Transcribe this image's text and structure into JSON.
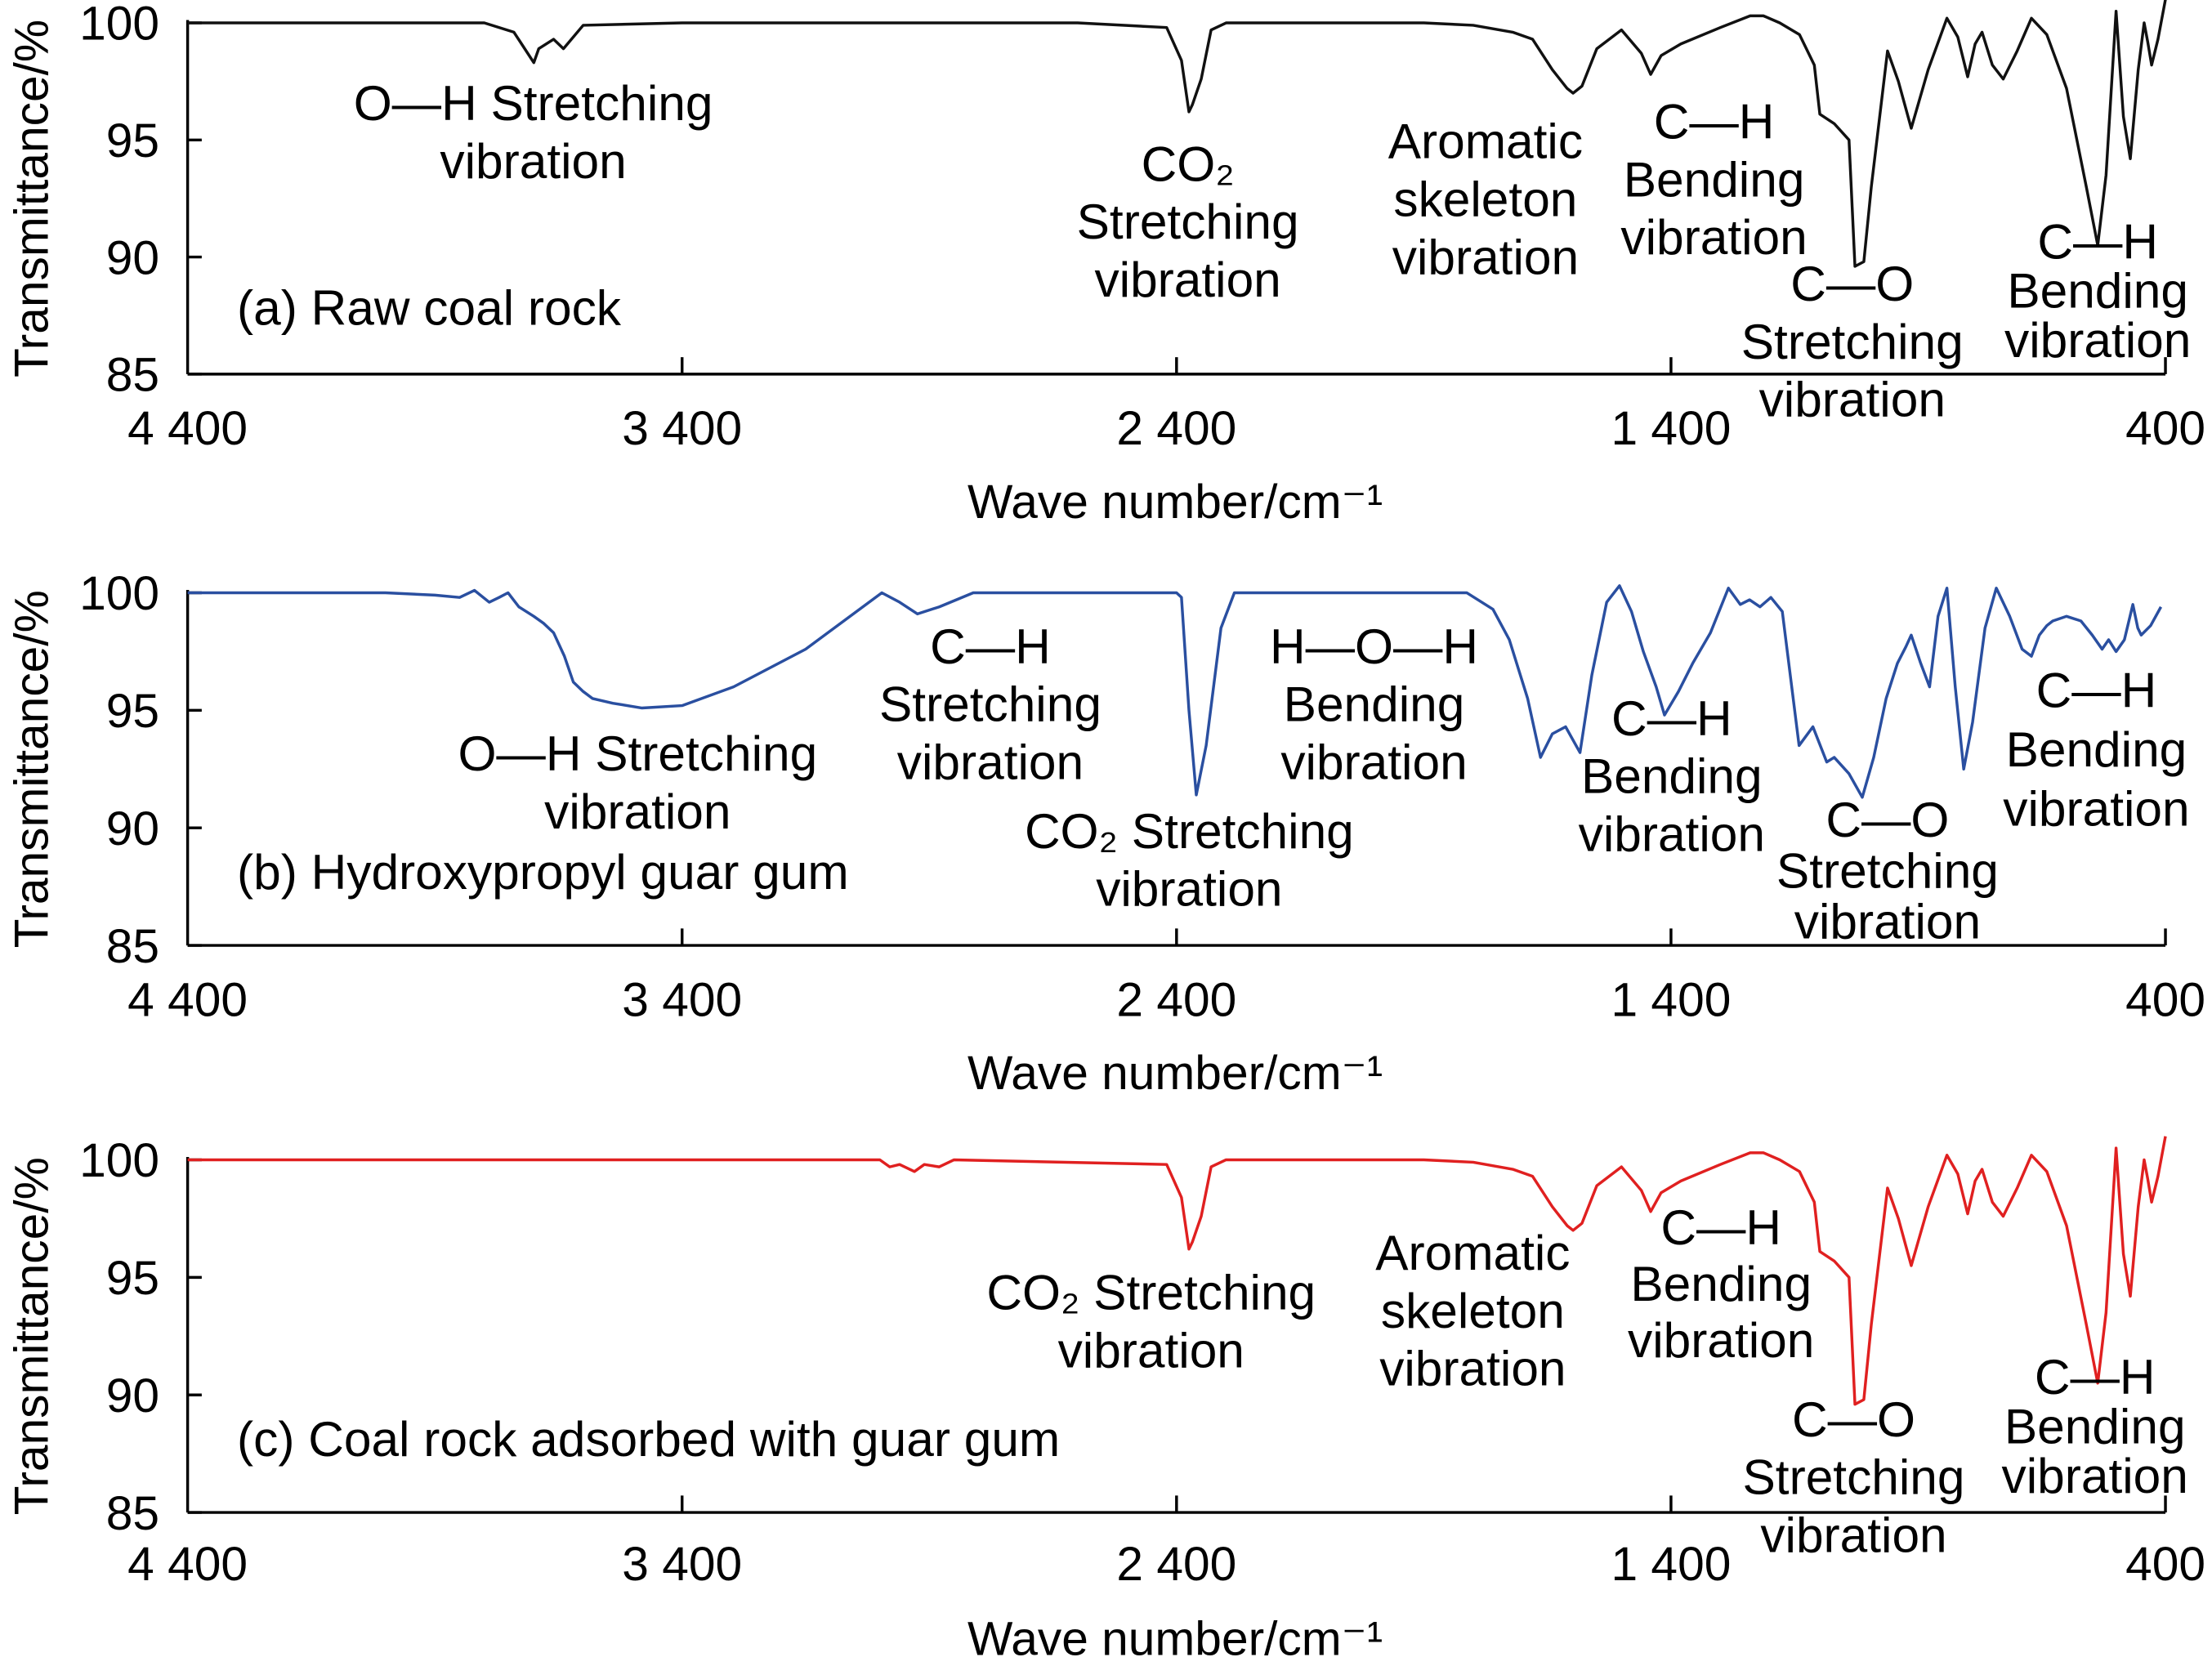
{
  "chart_data": [
    {
      "type": "line",
      "title": "(a) Raw coal rock",
      "xlabel": "Wave number/cm⁻¹",
      "ylabel": "Transmittance/%",
      "xlim": [
        4400,
        400
      ],
      "ylim": [
        85,
        100
      ],
      "xticks": [
        "4 400",
        "3 400",
        "2 400",
        "1 400",
        "400"
      ],
      "xtick_values": [
        4400,
        3400,
        2400,
        1400,
        400
      ],
      "yticks": [
        "100",
        "95",
        "90",
        "85"
      ],
      "ytick_values": [
        100,
        95,
        90,
        85
      ],
      "color": "#111111",
      "series": [
        {
          "name": "Raw coal rock",
          "x": [
            4400,
            3800,
            3740,
            3700,
            3690,
            3660,
            3640,
            3600,
            3400,
            2600,
            2420,
            2390,
            2375,
            2368,
            2350,
            2330,
            2300,
            2200,
            1900,
            1800,
            1720,
            1680,
            1640,
            1610,
            1598,
            1580,
            1550,
            1500,
            1460,
            1441,
            1420,
            1380,
            1300,
            1240,
            1213,
            1180,
            1140,
            1110,
            1099,
            1070,
            1040,
            1028,
            1010,
            995,
            962,
            940,
            914,
            880,
            842,
            820,
            800,
            785,
            771,
            750,
            728,
            700,
            671,
            640,
            600,
            560,
            537,
            520,
            500,
            485,
            471,
            455,
            443,
            436,
            428,
            415,
            400
          ],
          "y": [
            100,
            100,
            99.6,
            98.3,
            98.9,
            99.3,
            98.9,
            99.9,
            100,
            100,
            99.8,
            98.4,
            96.2,
            96.5,
            97.6,
            99.7,
            100,
            100,
            100,
            99.9,
            99.6,
            99.3,
            98,
            97.2,
            97,
            97.3,
            98.9,
            99.7,
            98.7,
            97.8,
            98.6,
            99.1,
            99.8,
            100.3,
            100.3,
            100,
            99.5,
            98.2,
            96.1,
            95.7,
            95,
            89.6,
            89.8,
            93,
            98.8,
            97.5,
            95.5,
            98,
            100.2,
            99.4,
            97.7,
            99.1,
            99.6,
            98.2,
            97.6,
            98.8,
            100.2,
            99.5,
            97.2,
            93,
            90.5,
            93.5,
            100.5,
            96,
            94.2,
            98,
            100,
            99.2,
            98.2,
            99.3,
            101
          ]
        }
      ],
      "annotations": [
        {
          "lines": [
            "O—H Stretching",
            "vibration"
          ]
        },
        {
          "lines": [
            "CO₂",
            "Stretching",
            "vibration"
          ]
        },
        {
          "lines": [
            "Aromatic",
            "skeleton",
            "vibration"
          ]
        },
        {
          "lines": [
            "C—H",
            "Bending",
            "vibration"
          ]
        },
        {
          "lines": [
            "C—O",
            "Stretching",
            "vibration"
          ]
        },
        {
          "lines": [
            "C—H",
            "Bending",
            "vibration"
          ]
        }
      ]
    },
    {
      "type": "line",
      "title": "(b) Hydroxypropyl guar gum",
      "xlabel": "Wave number/cm⁻¹",
      "ylabel": "Transmittance/%",
      "xlim": [
        4400,
        400
      ],
      "ylim": [
        85,
        100
      ],
      "xticks": [
        "4 400",
        "3 400",
        "2 400",
        "1 400",
        "400"
      ],
      "xtick_values": [
        4400,
        3400,
        2400,
        1400,
        400
      ],
      "yticks": [
        "100",
        "95",
        "90",
        "85"
      ],
      "ytick_values": [
        100,
        95,
        90,
        85
      ],
      "color": "#2a4fa0",
      "series": [
        {
          "name": "Hydroxypropyl guar gum",
          "x": [
            4400,
            4000,
            3900,
            3850,
            3820,
            3790,
            3770,
            3752,
            3730,
            3700,
            3680,
            3660,
            3638,
            3620,
            3600,
            3581,
            3540,
            3481,
            3400,
            3296,
            3150,
            2996,
            2960,
            2924,
            2880,
            2811,
            2600,
            2400,
            2390,
            2375,
            2360,
            2340,
            2310,
            2283,
            2100,
            1813,
            1760,
            1727,
            1690,
            1664,
            1640,
            1613,
            1584,
            1560,
            1530,
            1504,
            1480,
            1456,
            1430,
            1413,
            1385,
            1356,
            1320,
            1284,
            1260,
            1241,
            1220,
            1198,
            1175,
            1141,
            1113,
            1085,
            1070,
            1040,
            1013,
            990,
            965,
            942,
            925,
            914,
            895,
            877,
            860,
            842,
            825,
            808,
            790,
            765,
            742,
            715,
            690,
            671,
            655,
            640,
            628,
            600,
            571,
            548,
            528,
            515,
            500,
            483,
            466,
            456,
            449,
            430,
            409
          ],
          "y": [
            100,
            100,
            99.9,
            99.8,
            100.1,
            99.6,
            99.8,
            100,
            99.4,
            99,
            98.7,
            98.3,
            97.3,
            96.2,
            95.8,
            95.5,
            95.3,
            95.1,
            95.2,
            96,
            97.6,
            100,
            99.6,
            99.1,
            99.4,
            100,
            100,
            100,
            99.8,
            95,
            91.4,
            93.5,
            98.5,
            100,
            100,
            100,
            99.3,
            98,
            95.5,
            93,
            94,
            94.3,
            93.2,
            96.5,
            99.6,
            100.3,
            99.2,
            97.5,
            96,
            94.8,
            95.8,
            97,
            98.3,
            100.2,
            99.5,
            99.7,
            99.4,
            99.8,
            99.2,
            93.5,
            94.3,
            92.8,
            93,
            92.3,
            91.3,
            93,
            95.5,
            97,
            97.7,
            98.2,
            97,
            96,
            99,
            100.2,
            96,
            92.5,
            94.5,
            98.5,
            100.2,
            99,
            97.6,
            97.3,
            98.2,
            98.6,
            98.8,
            99,
            98.8,
            98.2,
            97.6,
            98,
            97.5,
            98,
            99.5,
            98.5,
            98.2,
            98.6,
            99.4
          ]
        }
      ],
      "annotations": [
        {
          "lines": [
            "O—H Stretching",
            "vibration"
          ]
        },
        {
          "lines": [
            "C—H",
            "Stretching",
            "vibration"
          ]
        },
        {
          "lines": [
            "H—O—H",
            "Bending",
            "vibration"
          ]
        },
        {
          "lines": [
            "CO₂ Stretching",
            "vibration"
          ]
        },
        {
          "lines": [
            "C—H",
            "Bending",
            "vibration"
          ]
        },
        {
          "lines": [
            "C—O",
            "Stretching",
            "vibration"
          ]
        },
        {
          "lines": [
            "C—H",
            "Bending",
            "vibration"
          ]
        }
      ]
    },
    {
      "type": "line",
      "title": "(c) Coal rock adsorbed with guar gum",
      "xlabel": "Wave number/cm⁻¹",
      "ylabel": "Transmittance/%",
      "xlim": [
        4400,
        400
      ],
      "ylim": [
        85,
        100
      ],
      "xticks": [
        "4 400",
        "3 400",
        "2 400",
        "1 400",
        "400"
      ],
      "xtick_values": [
        4400,
        3400,
        2400,
        1400,
        400
      ],
      "yticks": [
        "100",
        "95",
        "90",
        "85"
      ],
      "ytick_values": [
        100,
        95,
        90,
        85
      ],
      "color": "#e02020",
      "series": [
        {
          "name": "Coal rock adsorbed with guar gum",
          "x": [
            4400,
            3000,
            2980,
            2960,
            2930,
            2910,
            2880,
            2850,
            2420,
            2390,
            2375,
            2368,
            2350,
            2330,
            2300,
            2200,
            1900,
            1800,
            1720,
            1680,
            1640,
            1610,
            1598,
            1580,
            1550,
            1500,
            1460,
            1441,
            1420,
            1380,
            1300,
            1240,
            1213,
            1180,
            1140,
            1110,
            1099,
            1070,
            1040,
            1028,
            1010,
            995,
            962,
            940,
            914,
            880,
            842,
            820,
            800,
            785,
            771,
            750,
            728,
            700,
            671,
            640,
            600,
            560,
            537,
            520,
            500,
            485,
            471,
            455,
            443,
            436,
            428,
            415,
            400
          ],
          "y": [
            100,
            100,
            99.7,
            99.8,
            99.5,
            99.8,
            99.7,
            100,
            99.8,
            98.4,
            96.2,
            96.5,
            97.6,
            99.7,
            100,
            100,
            100,
            99.9,
            99.6,
            99.3,
            98,
            97.2,
            97,
            97.3,
            98.9,
            99.7,
            98.7,
            97.8,
            98.6,
            99.1,
            99.8,
            100.3,
            100.3,
            100,
            99.5,
            98.2,
            96.1,
            95.7,
            95,
            89.6,
            89.8,
            93,
            98.8,
            97.5,
            95.5,
            98,
            100.2,
            99.4,
            97.7,
            99.1,
            99.6,
            98.2,
            97.6,
            98.8,
            100.2,
            99.5,
            97.2,
            93,
            90.5,
            93.5,
            100.5,
            96,
            94.2,
            98,
            100,
            99.2,
            98.2,
            99.3,
            101
          ]
        }
      ],
      "annotations": [
        {
          "lines": [
            "CO₂ Stretching",
            "vibration"
          ]
        },
        {
          "lines": [
            "Aromatic",
            "skeleton",
            "vibration"
          ]
        },
        {
          "lines": [
            "C—H",
            "Bending",
            "vibration"
          ]
        },
        {
          "lines": [
            "C—O",
            "Stretching",
            "vibration"
          ]
        },
        {
          "lines": [
            "C—H",
            "Bending",
            "vibration"
          ]
        }
      ]
    }
  ]
}
